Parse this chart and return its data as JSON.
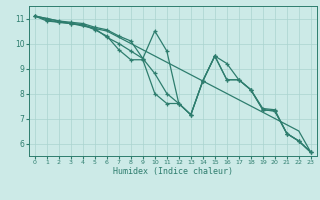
{
  "xlabel": "Humidex (Indice chaleur)",
  "background_color": "#cceae7",
  "grid_color": "#aad4d0",
  "line_color": "#2e7d6e",
  "xlim": [
    -0.5,
    23.5
  ],
  "ylim": [
    5.5,
    11.5
  ],
  "xticks": [
    0,
    1,
    2,
    3,
    4,
    5,
    6,
    7,
    8,
    9,
    10,
    11,
    12,
    13,
    14,
    15,
    16,
    17,
    18,
    19,
    20,
    21,
    22,
    23
  ],
  "yticks": [
    6,
    7,
    8,
    9,
    10,
    11
  ],
  "series": [
    [
      0,
      11.1,
      1,
      11.0,
      2,
      10.9,
      3,
      10.85,
      4,
      10.8,
      5,
      10.65,
      6,
      10.55,
      7,
      10.3,
      8,
      10.1,
      9,
      9.4,
      10,
      8.8,
      11,
      8.0,
      12,
      7.6,
      13,
      7.15,
      14,
      8.5,
      15,
      9.5,
      16,
      9.2,
      17,
      8.55,
      18,
      8.15,
      19,
      7.4,
      20,
      7.35,
      21,
      6.4,
      22,
      6.1,
      23,
      5.65
    ],
    [
      0,
      11.1,
      1,
      10.95,
      2,
      10.85,
      3,
      10.8,
      4,
      10.75,
      5,
      10.6,
      6,
      10.25,
      7,
      10.0,
      8,
      9.7,
      9,
      9.4,
      10,
      10.5,
      11,
      9.7,
      12,
      7.6,
      13,
      7.15,
      14,
      8.5,
      15,
      9.5,
      16,
      8.55,
      17,
      8.55,
      18,
      8.15,
      19,
      7.35,
      20,
      7.3,
      21,
      6.4,
      22,
      6.1,
      23,
      5.65
    ],
    [
      0,
      11.1,
      1,
      10.9,
      2,
      10.85,
      3,
      10.8,
      4,
      10.75,
      5,
      10.55,
      6,
      10.3,
      7,
      9.75,
      8,
      9.35,
      9,
      9.35,
      10,
      8.0,
      11,
      7.6,
      12,
      7.6,
      13,
      7.15,
      14,
      8.5,
      15,
      9.5,
      16,
      8.55,
      17,
      8.55,
      18,
      8.15,
      19,
      7.35,
      20,
      7.3,
      21,
      6.4,
      22,
      6.1,
      23,
      5.65
    ],
    [
      0,
      11.1,
      2,
      10.9,
      4,
      10.7,
      6,
      10.5,
      8,
      10.0,
      10,
      9.5,
      12,
      9.0,
      14,
      8.5,
      16,
      8.0,
      18,
      7.5,
      20,
      7.0,
      22,
      6.5,
      23,
      5.65
    ]
  ]
}
